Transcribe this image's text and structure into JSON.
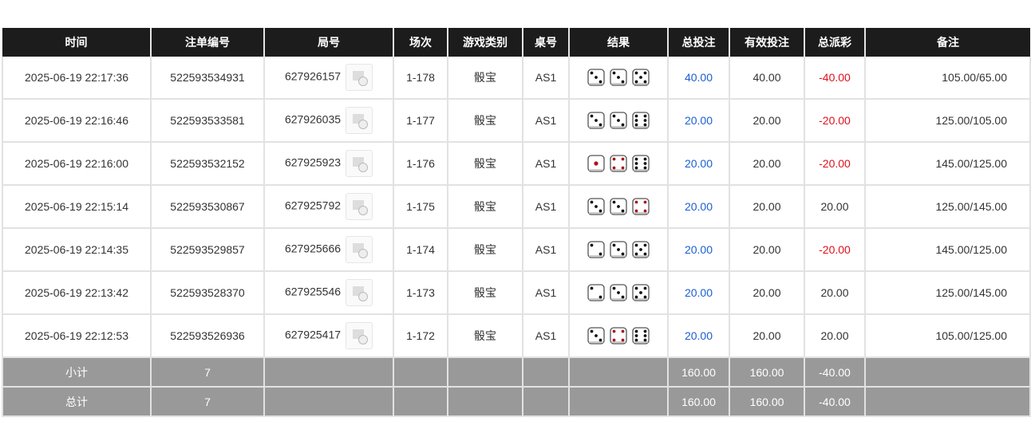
{
  "headers": [
    "时间",
    "注单编号",
    "局号",
    "场次",
    "游戏类别",
    "桌号",
    "结果",
    "总投注",
    "有效投注",
    "总派彩",
    "备注"
  ],
  "rows": [
    {
      "time": "2025-06-19 22:17:36",
      "bet_id": "522593534931",
      "round": "627926157",
      "shoe": "1-178",
      "game": "骰宝",
      "table": "AS1",
      "dice": [
        3,
        3,
        5
      ],
      "total_bet": "40.00",
      "valid_bet": "40.00",
      "payout": "-40.00",
      "payout_neg": true,
      "remark": "105.00/65.00"
    },
    {
      "time": "2025-06-19 22:16:46",
      "bet_id": "522593533581",
      "round": "627926035",
      "shoe": "1-177",
      "game": "骰宝",
      "table": "AS1",
      "dice": [
        3,
        3,
        6
      ],
      "total_bet": "20.00",
      "valid_bet": "20.00",
      "payout": "-20.00",
      "payout_neg": true,
      "remark": "125.00/105.00"
    },
    {
      "time": "2025-06-19 22:16:00",
      "bet_id": "522593532152",
      "round": "627925923",
      "shoe": "1-176",
      "game": "骰宝",
      "table": "AS1",
      "dice": [
        1,
        4,
        6
      ],
      "total_bet": "20.00",
      "valid_bet": "20.00",
      "payout": "-20.00",
      "payout_neg": true,
      "remark": "145.00/125.00"
    },
    {
      "time": "2025-06-19 22:15:14",
      "bet_id": "522593530867",
      "round": "627925792",
      "shoe": "1-175",
      "game": "骰宝",
      "table": "AS1",
      "dice": [
        3,
        3,
        4
      ],
      "total_bet": "20.00",
      "valid_bet": "20.00",
      "payout": "20.00",
      "payout_neg": false,
      "remark": "125.00/145.00"
    },
    {
      "time": "2025-06-19 22:14:35",
      "bet_id": "522593529857",
      "round": "627925666",
      "shoe": "1-174",
      "game": "骰宝",
      "table": "AS1",
      "dice": [
        2,
        3,
        5
      ],
      "total_bet": "20.00",
      "valid_bet": "20.00",
      "payout": "-20.00",
      "payout_neg": true,
      "remark": "145.00/125.00"
    },
    {
      "time": "2025-06-19 22:13:42",
      "bet_id": "522593528370",
      "round": "627925546",
      "shoe": "1-173",
      "game": "骰宝",
      "table": "AS1",
      "dice": [
        2,
        3,
        5
      ],
      "total_bet": "20.00",
      "valid_bet": "20.00",
      "payout": "20.00",
      "payout_neg": false,
      "remark": "125.00/145.00"
    },
    {
      "time": "2025-06-19 22:12:53",
      "bet_id": "522593526936",
      "round": "627925417",
      "shoe": "1-172",
      "game": "骰宝",
      "table": "AS1",
      "dice": [
        3,
        4,
        6
      ],
      "total_bet": "20.00",
      "valid_bet": "20.00",
      "payout": "20.00",
      "payout_neg": false,
      "remark": "105.00/125.00"
    }
  ],
  "subtotal": {
    "label": "小计",
    "count": "7",
    "total_bet": "160.00",
    "valid_bet": "160.00",
    "payout": "-40.00"
  },
  "total": {
    "label": "总计",
    "count": "7",
    "total_bet": "160.00",
    "valid_bet": "160.00",
    "payout": "-40.00"
  },
  "colors": {
    "header_bg": "#1c1c1c",
    "bet_blue": "#1a5fd1",
    "loss_red": "#e0101a",
    "summary_bg": "#999999"
  }
}
